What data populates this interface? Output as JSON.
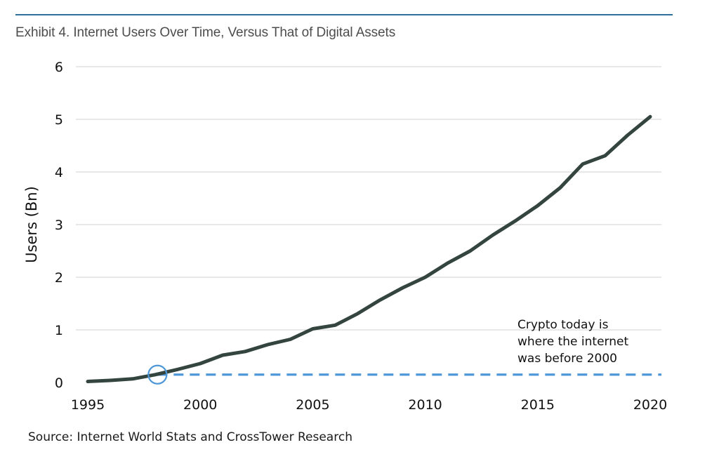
{
  "chart_data": {
    "type": "line",
    "title": "Exhibit 4. Internet Users Over Time, Versus That of Digital Assets",
    "xlabel": "",
    "ylabel": "Users (Bn)",
    "xlim": [
      1995,
      2020
    ],
    "ylim": [
      0,
      6
    ],
    "x_ticks": [
      "1995",
      "2000",
      "2005",
      "2010",
      "2015",
      "2020"
    ],
    "y_ticks": [
      "0",
      "1",
      "2",
      "3",
      "4",
      "5",
      "6"
    ],
    "grid": true,
    "series": [
      {
        "x": [
          1995,
          1996,
          1997,
          1998,
          1999,
          2000,
          2001,
          2002,
          2003,
          2004,
          2005,
          2006,
          2007,
          2008,
          2009,
          2010,
          2011,
          2012,
          2013,
          2014,
          2015,
          2016,
          2017,
          2018,
          2019,
          2020
        ],
        "values": [
          0.02,
          0.04,
          0.07,
          0.15,
          0.25,
          0.36,
          0.52,
          0.59,
          0.72,
          0.82,
          1.02,
          1.09,
          1.31,
          1.57,
          1.8,
          2.0,
          2.27,
          2.5,
          2.8,
          3.07,
          3.36,
          3.7,
          4.15,
          4.31,
          4.7,
          5.05
        ],
        "color": "#34453f"
      }
    ],
    "reference_line": {
      "y": 0.15,
      "from_x": 1998.1,
      "style": "dashed",
      "color": "#4e97d8"
    },
    "highlight_marker": {
      "x": 1998.1,
      "y": 0.15,
      "shape": "circle",
      "color": "#4e97d8"
    },
    "annotation": [
      "Crypto today is",
      "where the internet",
      "was before 2000"
    ]
  },
  "source": "Source: Internet World Stats and CrossTower Research"
}
